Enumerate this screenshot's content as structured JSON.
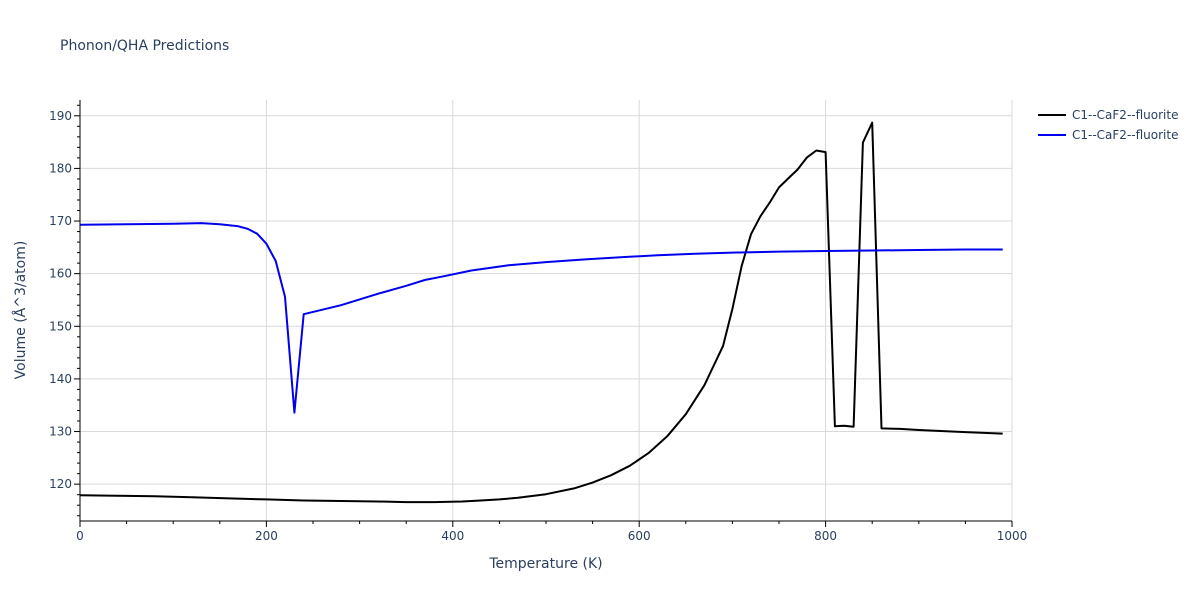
{
  "chart_data": {
    "type": "line",
    "title": "Phonon/QHA Predictions",
    "xlabel": "Temperature (K)",
    "ylabel": "Volume (Å^3/atom)",
    "xlim": [
      0,
      1000
    ],
    "ylim": [
      113,
      193
    ],
    "xticks": [
      0,
      200,
      400,
      600,
      800,
      1000
    ],
    "yticks": [
      120,
      130,
      140,
      150,
      160,
      170,
      180,
      190
    ],
    "grid": true,
    "legend_position": "top-right",
    "series": [
      {
        "name": "C1--CaF2--fluorite",
        "color": "#000000",
        "x": [
          0,
          40,
          80,
          120,
          160,
          200,
          240,
          280,
          320,
          350,
          380,
          410,
          430,
          450,
          470,
          500,
          530,
          550,
          570,
          590,
          610,
          630,
          650,
          670,
          690,
          700,
          710,
          720,
          730,
          740,
          750,
          760,
          770,
          780,
          790,
          800,
          810,
          820,
          830,
          840,
          850,
          860,
          880,
          900,
          950,
          990
        ],
        "y": [
          117.9,
          117.8,
          117.7,
          117.5,
          117.3,
          117.1,
          116.9,
          116.8,
          116.7,
          116.6,
          116.6,
          116.7,
          116.9,
          117.1,
          117.4,
          118.1,
          119.2,
          120.3,
          121.7,
          123.5,
          125.9,
          129.1,
          133.3,
          138.8,
          146.3,
          153.3,
          161.5,
          167.5,
          170.9,
          173.5,
          176.4,
          178.1,
          179.8,
          182.1,
          183.4,
          183.1,
          131.0,
          131.1,
          130.9,
          184.9,
          188.7,
          130.6,
          130.5,
          130.3,
          129.9,
          129.6
        ]
      },
      {
        "name": "C1--CaF2--fluorite",
        "color": "#0000ee",
        "x": [
          0,
          50,
          100,
          130,
          150,
          170,
          180,
          190,
          200,
          210,
          220,
          230,
          240,
          280,
          320,
          350,
          370,
          390,
          420,
          460,
          500,
          540,
          580,
          620,
          660,
          700,
          750,
          800,
          850,
          900,
          950,
          990
        ],
        "y": [
          169.3,
          169.4,
          169.5,
          169.6,
          169.4,
          169.0,
          168.5,
          167.6,
          165.7,
          162.4,
          155.6,
          133.6,
          152.3,
          154.0,
          156.2,
          157.7,
          158.8,
          159.5,
          160.6,
          161.6,
          162.2,
          162.7,
          163.1,
          163.5,
          163.8,
          164.0,
          164.2,
          164.3,
          164.4,
          164.5,
          164.6,
          164.6
        ]
      }
    ]
  }
}
